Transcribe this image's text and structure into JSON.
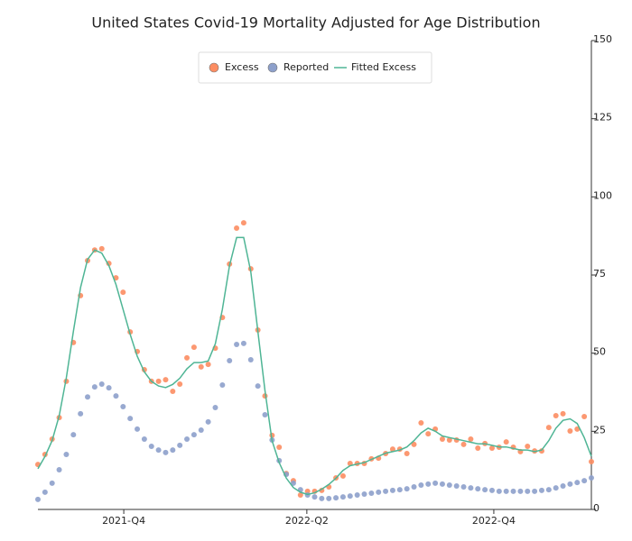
{
  "chart_data": {
    "type": "scatter",
    "title": "United States Covid-19 Mortality Adjusted for Age Distribution",
    "x": [
      0,
      1,
      2,
      3,
      4,
      5,
      6,
      7,
      8,
      9,
      10,
      11,
      12,
      13,
      14,
      15,
      16,
      17,
      18,
      19,
      20,
      21,
      22,
      23,
      24,
      25,
      26,
      27,
      28,
      29,
      30,
      31,
      32,
      33,
      34,
      35,
      36,
      37,
      38,
      39,
      40,
      41,
      42,
      43,
      44,
      45,
      46,
      47,
      48,
      49,
      50,
      51,
      52,
      53,
      54,
      55,
      56,
      57,
      58,
      59,
      60,
      61,
      62,
      63,
      64,
      65,
      66,
      67,
      68,
      69,
      70,
      71,
      72,
      73,
      74,
      75,
      76,
      77,
      78
    ],
    "xlim": [
      0,
      78
    ],
    "xticks": [
      {
        "value": 12.1,
        "label": "2021-Q4"
      },
      {
        "value": 37.9,
        "label": "2022-Q2"
      },
      {
        "value": 64.25,
        "label": "2022-Q4"
      }
    ],
    "ylim": [
      0,
      150
    ],
    "yticks": [
      0,
      25,
      50,
      75,
      100,
      125,
      150
    ],
    "series": [
      {
        "name": "Excess",
        "type": "scatter",
        "color": "#fc8d62",
        "values": [
          14.4,
          17.6,
          22.5,
          29.4,
          41,
          53.4,
          68.4,
          79.6,
          83,
          83.4,
          78.7,
          74.1,
          69.5,
          56.8,
          50.5,
          44.7,
          41,
          41,
          41.5,
          37.8,
          40.1,
          48.5,
          51.9,
          45.6,
          46.4,
          51.6,
          61.4,
          78.5,
          90,
          91.7,
          77,
          57.4,
          36.3,
          23.7,
          19.9,
          11.5,
          9.2,
          4.6,
          5.8,
          5.8,
          6.1,
          7.2,
          10.1,
          10.7,
          14.7,
          14.7,
          14.7,
          16.2,
          16.4,
          17.9,
          19.3,
          19.3,
          17.9,
          20.8,
          27.7,
          24.2,
          25.7,
          22.5,
          22.2,
          22.2,
          20.8,
          22.5,
          19.6,
          21.1,
          19.6,
          19.9,
          21.6,
          19.9,
          18.5,
          20.2,
          18.7,
          18.7,
          26.2,
          30,
          30.6,
          25.1,
          25.7,
          29.7,
          15.3
        ]
      },
      {
        "name": "Reported",
        "type": "scatter",
        "color": "#8da0cb",
        "values": [
          3.2,
          5.5,
          8.4,
          12.7,
          17.6,
          23.9,
          30.6,
          36,
          39.2,
          40.1,
          38.9,
          36.3,
          32.9,
          29.1,
          25.7,
          22.5,
          20.2,
          19,
          18.2,
          19,
          20.5,
          22.5,
          23.9,
          25.4,
          28,
          32.6,
          39.8,
          47.6,
          52.8,
          53.1,
          47.9,
          39.5,
          30.3,
          22.2,
          15.6,
          11.2,
          8.4,
          6.3,
          4.6,
          4,
          3.5,
          3.5,
          3.7,
          4,
          4.3,
          4.6,
          4.9,
          5.2,
          5.5,
          5.8,
          6.1,
          6.3,
          6.6,
          7.2,
          7.8,
          8.1,
          8.4,
          8.1,
          7.8,
          7.5,
          7.2,
          6.9,
          6.6,
          6.3,
          6.1,
          5.8,
          5.8,
          5.8,
          5.8,
          5.8,
          5.8,
          6.1,
          6.3,
          6.9,
          7.5,
          8.1,
          8.6,
          9.2,
          10.1
        ]
      },
      {
        "name": "Fitted Excess",
        "type": "line",
        "color": "#4fb595",
        "values": [
          13,
          17,
          22,
          30,
          42,
          57,
          71,
          80,
          83,
          82,
          78,
          72,
          64,
          56,
          49,
          44,
          41,
          39.5,
          39,
          40,
          42,
          45,
          47,
          47,
          47.5,
          53,
          64,
          78,
          87,
          87,
          76,
          57,
          38,
          22,
          15,
          10,
          7,
          5.5,
          4.8,
          5.3,
          6.5,
          8,
          10,
          12.5,
          14,
          14.5,
          15,
          16,
          17,
          18,
          18.5,
          19,
          20,
          22,
          24.5,
          26,
          25,
          23.5,
          23,
          22.5,
          22,
          21.5,
          21,
          21,
          20.5,
          20,
          20,
          19.5,
          19,
          19,
          18.5,
          19,
          22,
          26,
          28.5,
          29,
          27.5,
          23,
          17
        ]
      }
    ]
  }
}
